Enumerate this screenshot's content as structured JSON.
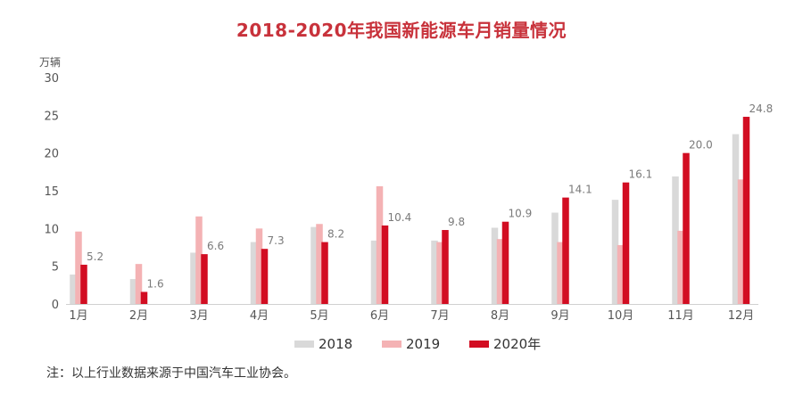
{
  "colors": {
    "s2018": "#d9d9d9",
    "s2019": "#f4b2b4",
    "s2020": "#d20d22",
    "title": "#c8323b",
    "axis_text": "#555555",
    "label_grey": "#7a7a7a"
  },
  "chart_data": {
    "type": "bar",
    "title": "2018-2020年我国新能源车月销量情况",
    "ylabel": "万辆",
    "xlabel": "",
    "ylim": [
      0,
      30
    ],
    "yticks": [
      "0",
      "5",
      "10",
      "15",
      "20",
      "25",
      "30"
    ],
    "grid": false,
    "legend_position": "bottom",
    "categories": [
      "1月",
      "2月",
      "3月",
      "4月",
      "5月",
      "6月",
      "7月",
      "8月",
      "9月",
      "10月",
      "11月",
      "12月"
    ],
    "series": [
      {
        "name": "2018",
        "values": [
          3.9,
          3.3,
          6.8,
          8.2,
          10.2,
          8.4,
          8.4,
          10.1,
          12.1,
          13.8,
          16.9,
          22.5
        ]
      },
      {
        "name": "2019",
        "values": [
          9.6,
          5.3,
          11.6,
          10.0,
          10.6,
          15.6,
          8.2,
          8.6,
          8.2,
          7.8,
          9.7,
          16.5
        ]
      },
      {
        "name": "2020年",
        "values": [
          5.2,
          1.6,
          6.6,
          7.3,
          8.2,
          10.4,
          9.8,
          10.9,
          14.1,
          16.1,
          20.0,
          24.8
        ]
      }
    ],
    "data_labels": [
      "5.2",
      "1.6",
      "6.6",
      "7.3",
      "8.2",
      "10.4",
      "9.8",
      "10.9",
      "14.1",
      "16.1",
      "20.0",
      "24.8"
    ]
  },
  "note": "注：以上行业数据来源于中国汽车工业协会。"
}
